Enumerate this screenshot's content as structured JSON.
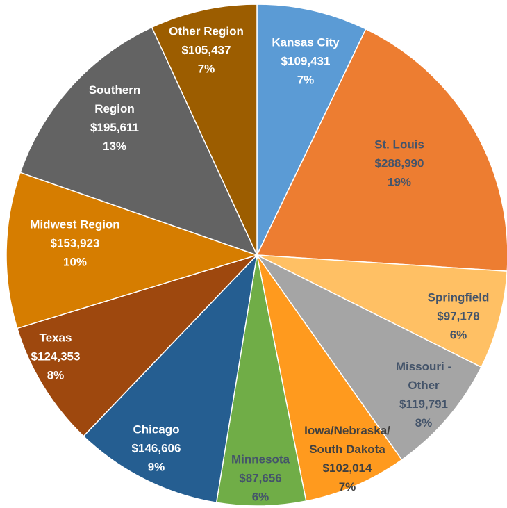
{
  "chart_data": {
    "type": "pie",
    "categories": [
      "Kansas City",
      "St. Louis",
      "Springfield",
      "Missouri - Other",
      "Iowa/Nebraska/ South Dakota",
      "Minnesota",
      "Chicago",
      "Texas",
      "Midwest Region",
      "Southern Region",
      "Other Region"
    ],
    "values": [
      109431,
      288990,
      97178,
      119791,
      102014,
      87656,
      146606,
      124353,
      153923,
      195611,
      105437
    ],
    "value_labels": [
      "$109,431",
      "$288,990",
      "$97,178",
      "$119,791",
      "$102,014",
      "$87,656",
      "$146,606",
      "$124,353",
      "$153,923",
      "$195,611",
      "$105,437"
    ],
    "percentages": [
      7,
      19,
      6,
      8,
      7,
      6,
      9,
      8,
      10,
      13,
      7
    ],
    "percent_labels": [
      "7%",
      "19%",
      "6%",
      "8%",
      "7%",
      "6%",
      "9%",
      "8%",
      "10%",
      "13%",
      "7%"
    ],
    "colors": [
      "#5b9bd5",
      "#ed7d31",
      "#ffc064",
      "#a5a5a5",
      "#ff9a1e",
      "#70ad47",
      "#255e91",
      "#9e480e",
      "#d67d00",
      "#636363",
      "#9c5d00"
    ],
    "label_colors": [
      "#ffffff",
      "#44546a",
      "#44546a",
      "#44546a",
      "#404040",
      "#44546a",
      "#ffffff",
      "#ffffff",
      "#ffffff",
      "#ffffff",
      "#ffffff"
    ]
  }
}
